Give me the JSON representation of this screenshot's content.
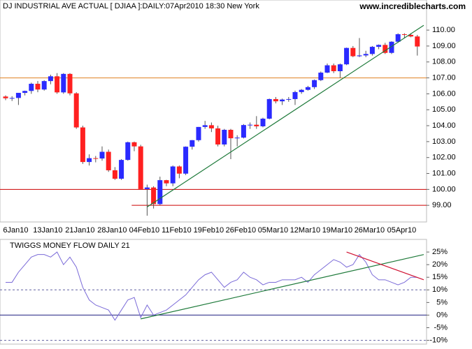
{
  "chart_data": [
    {
      "type": "candlestick",
      "title": "DJ INDUSTRIAL AVE ACTUAL [ DJIAA ]:DAILY:07Apr2010 18:30 New York",
      "source": "www.incrediblecharts.com",
      "categories": [
        null,
        null,
        "6Jan10",
        null,
        null,
        null,
        null,
        "13Jan10",
        null,
        null,
        null,
        null,
        "21Jan10",
        null,
        null,
        null,
        null,
        "28Jan10",
        null,
        null,
        null,
        null,
        "04Feb10",
        null,
        null,
        null,
        null,
        "11Feb10",
        null,
        null,
        null,
        null,
        "19Feb10",
        null,
        null,
        null,
        null,
        "26Feb10",
        null,
        null,
        null,
        null,
        "05Mar10",
        null,
        null,
        null,
        null,
        "12Mar10",
        null,
        null,
        null,
        null,
        "19Mar10",
        null,
        null,
        null,
        null,
        "26Mar10",
        null,
        null,
        null,
        null,
        "05Apr10",
        null,
        null
      ],
      "open": [
        105.83,
        105.72,
        105.74,
        106.06,
        106.18,
        106.63,
        106.27,
        106.8,
        107.1,
        106.09,
        107.25,
        106.03,
        103.89,
        101.72,
        101.96,
        101.94,
        102.36,
        101.2,
        100.67,
        101.85,
        102.96,
        102.7,
        100.02,
        100.12,
        99.08,
        100.58,
        100.38,
        101.44,
        100.99,
        102.68,
        103.09,
        103.92,
        104.03,
        103.83,
        102.82,
        103.74,
        103.21,
        103.25,
        104.04,
        104.06,
        103.96,
        104.44,
        105.67,
        105.53,
        105.64,
        105.67,
        106.11,
        106.25,
        106.42,
        106.86,
        107.33,
        107.79,
        107.42,
        107.85,
        108.88,
        108.36,
        108.41,
        108.5,
        108.95,
        109.07,
        108.57,
        109.27,
        109.74,
        109.7,
        109.6
      ],
      "high": [
        105.9,
        105.85,
        106.05,
        106.2,
        106.7,
        106.8,
        106.85,
        107.2,
        107.3,
        107.3,
        107.3,
        106.1,
        104.0,
        102.2,
        102.1,
        102.7,
        102.5,
        101.4,
        101.9,
        103.0,
        103.0,
        102.8,
        100.3,
        100.2,
        100.8,
        100.6,
        101.5,
        101.5,
        102.7,
        103.1,
        103.92,
        104.3,
        104.2,
        104.0,
        103.8,
        103.8,
        103.4,
        104.1,
        104.2,
        104.6,
        104.5,
        105.7,
        105.8,
        105.7,
        105.8,
        106.2,
        106.3,
        106.5,
        106.9,
        107.4,
        107.9,
        107.9,
        107.9,
        108.9,
        109.0,
        109.5,
        108.7,
        109.0,
        109.1,
        109.2,
        109.3,
        109.8,
        109.8,
        109.8,
        109.7
      ],
      "low": [
        105.6,
        105.55,
        105.3,
        105.9,
        106.0,
        106.1,
        106.2,
        106.6,
        106.0,
        106.0,
        105.9,
        103.8,
        101.6,
        101.5,
        101.7,
        101.8,
        101.1,
        100.6,
        100.6,
        101.8,
        102.4,
        100.0,
        98.35,
        98.8,
        99.0,
        100.2,
        100.2,
        100.7,
        100.9,
        102.5,
        103.0,
        103.8,
        103.6,
        102.7,
        102.7,
        101.9,
        102.7,
        103.2,
        103.8,
        103.8,
        103.9,
        104.4,
        105.4,
        105.3,
        105.5,
        105.3,
        106.0,
        106.2,
        106.3,
        106.8,
        107.3,
        107.3,
        107.0,
        107.8,
        108.3,
        108.3,
        108.3,
        108.4,
        108.8,
        108.5,
        108.5,
        109.2,
        109.5,
        109.55,
        108.4
      ],
      "close": [
        105.72,
        105.74,
        106.06,
        106.18,
        106.63,
        106.27,
        106.8,
        107.1,
        106.09,
        107.25,
        106.03,
        103.89,
        101.72,
        101.96,
        101.94,
        102.36,
        101.2,
        100.67,
        101.85,
        102.96,
        102.7,
        100.02,
        100.12,
        99.08,
        100.58,
        100.38,
        101.44,
        100.99,
        102.68,
        103.09,
        103.92,
        104.03,
        103.83,
        102.82,
        103.74,
        103.21,
        103.25,
        104.04,
        104.06,
        103.96,
        104.44,
        105.67,
        105.53,
        105.64,
        105.67,
        106.11,
        106.25,
        106.42,
        106.86,
        107.33,
        107.79,
        107.42,
        107.85,
        108.88,
        108.36,
        108.41,
        108.5,
        108.95,
        109.07,
        108.57,
        109.27,
        109.74,
        109.7,
        109.6,
        108.97
      ],
      "up_color": "#2a2aff",
      "down_color": "#ff2020",
      "ylim": [
        98,
        111.1
      ],
      "yticks": [
        {
          "value": 99,
          "label": "99.00"
        },
        {
          "value": 100,
          "label": "100.00"
        },
        {
          "value": 101,
          "label": "101.00"
        },
        {
          "value": 102,
          "label": "102.00"
        },
        {
          "value": 103,
          "label": "103.00"
        },
        {
          "value": 104,
          "label": "104.00"
        },
        {
          "value": 105,
          "label": "105.00"
        },
        {
          "value": 106,
          "label": "106.00"
        },
        {
          "value": 107,
          "label": "107.00"
        },
        {
          "value": 108,
          "label": "108.00"
        },
        {
          "value": 109,
          "label": "109.00"
        },
        {
          "value": 110,
          "label": "110.00"
        }
      ],
      "hlines": [
        {
          "value": 107,
          "color": "#e08020"
        },
        {
          "value": 100,
          "color": "#cc0000"
        },
        {
          "value": 99,
          "color": "#cc0000",
          "start": 19.6
        }
      ],
      "trendlines": [
        {
          "x": [
            22,
            65
          ],
          "values": [
            98.9,
            110.3
          ],
          "color": "#1e7a3a"
        }
      ]
    },
    {
      "type": "line",
      "title": "TWIGGS MONEY FLOW DAILY 21",
      "values": [
        13,
        13,
        17,
        20,
        23,
        24,
        24,
        23,
        25,
        20,
        23,
        19,
        11,
        6,
        4,
        3,
        2,
        -2,
        2,
        6,
        7,
        -1,
        4,
        0,
        1,
        2,
        4,
        6,
        8,
        11,
        14,
        16,
        17,
        14,
        11,
        13,
        14,
        17,
        15,
        14,
        12,
        13,
        13,
        14,
        14,
        14,
        15,
        13,
        16,
        18,
        20,
        22,
        21,
        19,
        20,
        24,
        21,
        16,
        14,
        14,
        13,
        12,
        13,
        15,
        15
      ],
      "color": "#7a6ad8",
      "ylim": [
        -11.5,
        30
      ],
      "yticks": [
        {
          "value": 25,
          "label": "25%"
        },
        {
          "value": 20,
          "label": "20%"
        },
        {
          "value": 15,
          "label": "15%"
        },
        {
          "value": 10,
          "label": "10%"
        },
        {
          "value": 5,
          "label": "5%"
        },
        {
          "value": 0,
          "label": "0%"
        },
        {
          "value": -5,
          "label": "-5%"
        },
        {
          "value": -10,
          "label": "-10%"
        }
      ],
      "hlines": [
        {
          "value": 10,
          "color": "#6060a0",
          "style": "dashed"
        },
        {
          "value": 0,
          "color": "#202080"
        },
        {
          "value": -10,
          "color": "#6060a0",
          "style": "dashed"
        }
      ],
      "trendlines": [
        {
          "x": [
            21,
            65
          ],
          "values": [
            -1.5,
            24
          ],
          "color": "#1e7a3a"
        },
        {
          "x": [
            53,
            65
          ],
          "values": [
            25,
            14
          ],
          "color": "#d01030"
        }
      ]
    }
  ]
}
